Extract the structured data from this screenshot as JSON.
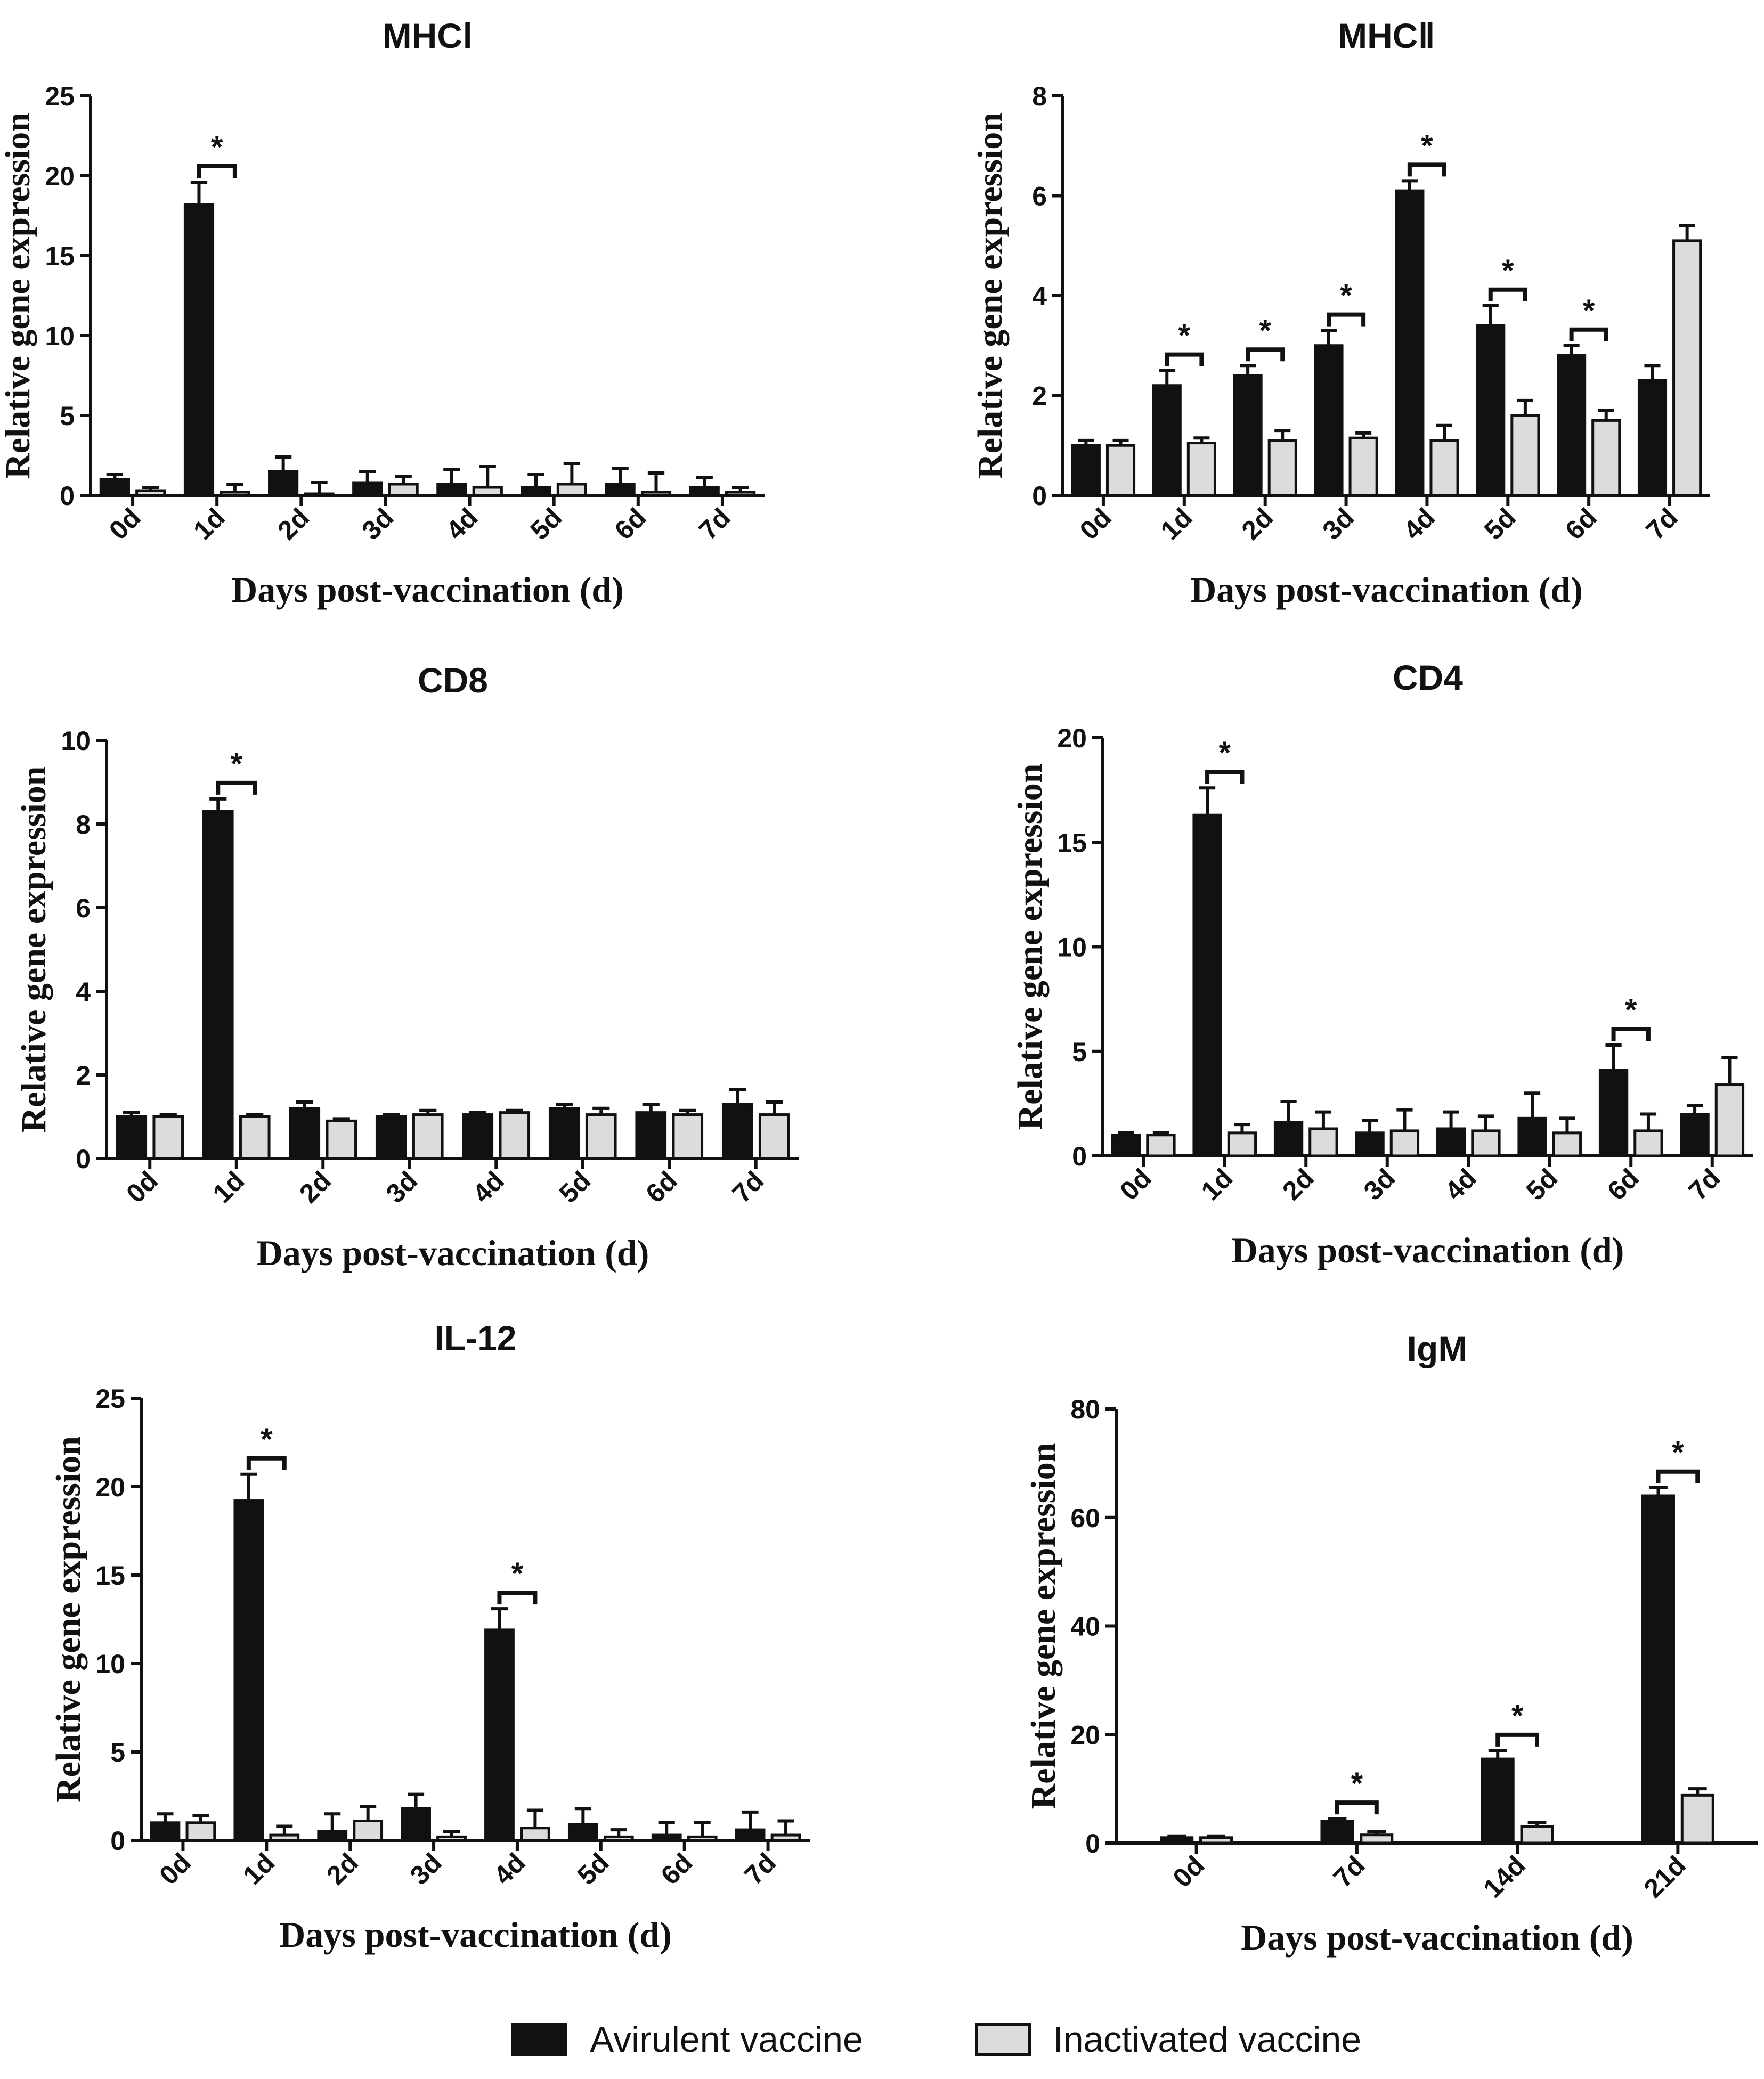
{
  "colors": {
    "avirulent": "#111111",
    "inactivated": "#dcdcdc",
    "axis": "#111111"
  },
  "legend": {
    "items": [
      {
        "label": "Avirulent vaccine",
        "color": "#111111"
      },
      {
        "label": "Inactivated vaccine",
        "color": "#dcdcdc"
      }
    ]
  },
  "chart_data": [
    {
      "type": "bar",
      "title": "MHCⅠ",
      "xlabel": "Days post-vaccination (d)",
      "ylabel": "Relative gene expression",
      "ylim": [
        0,
        25
      ],
      "yticks": [
        0,
        5,
        10,
        15,
        20,
        25
      ],
      "categories": [
        "0d",
        "1d",
        "2d",
        "3d",
        "4d",
        "5d",
        "6d",
        "7d"
      ],
      "series": [
        {
          "name": "Avirulent vaccine",
          "values": [
            1.0,
            18.2,
            1.5,
            0.8,
            0.7,
            0.5,
            0.7,
            0.5
          ],
          "errors": [
            0.3,
            1.4,
            0.9,
            0.7,
            0.9,
            0.8,
            1.0,
            0.6
          ]
        },
        {
          "name": "Inactivated vaccine",
          "values": [
            0.3,
            0.2,
            0.1,
            0.7,
            0.5,
            0.7,
            0.2,
            0.2
          ],
          "errors": [
            0.2,
            0.5,
            0.7,
            0.5,
            1.3,
            1.3,
            1.2,
            0.3
          ]
        }
      ],
      "significance": [
        "",
        "*",
        "",
        "",
        "",
        "",
        "",
        ""
      ]
    },
    {
      "type": "bar",
      "title": "MHCⅡ",
      "xlabel": "Days post-vaccination (d)",
      "ylabel": "Relative gene expression",
      "ylim": [
        0,
        8
      ],
      "yticks": [
        0,
        2,
        4,
        6,
        8
      ],
      "categories": [
        "0d",
        "1d",
        "2d",
        "3d",
        "4d",
        "5d",
        "6d",
        "7d"
      ],
      "series": [
        {
          "name": "Avirulent vaccine",
          "values": [
            1.0,
            2.2,
            2.4,
            3.0,
            6.1,
            3.4,
            2.8,
            2.3
          ],
          "errors": [
            0.1,
            0.3,
            0.2,
            0.3,
            0.2,
            0.4,
            0.2,
            0.3
          ]
        },
        {
          "name": "Inactivated vaccine",
          "values": [
            1.0,
            1.05,
            1.1,
            1.15,
            1.1,
            1.6,
            1.5,
            5.1
          ],
          "errors": [
            0.1,
            0.1,
            0.2,
            0.1,
            0.3,
            0.3,
            0.2,
            0.3
          ]
        }
      ],
      "significance": [
        "",
        "*",
        "*",
        "*",
        "*",
        "*",
        "*",
        ""
      ]
    },
    {
      "type": "bar",
      "title": "CD8",
      "xlabel": "Days post-vaccination (d)",
      "ylabel": "Relative gene expression",
      "ylim": [
        0,
        10
      ],
      "yticks": [
        0,
        2,
        4,
        6,
        8,
        10
      ],
      "categories": [
        "0d",
        "1d",
        "2d",
        "3d",
        "4d",
        "5d",
        "6d",
        "7d"
      ],
      "series": [
        {
          "name": "Avirulent vaccine",
          "values": [
            1.0,
            8.3,
            1.2,
            1.0,
            1.05,
            1.2,
            1.1,
            1.3
          ],
          "errors": [
            0.1,
            0.3,
            0.15,
            0.05,
            0.05,
            0.1,
            0.2,
            0.35
          ]
        },
        {
          "name": "Inactivated vaccine",
          "values": [
            1.0,
            1.0,
            0.9,
            1.05,
            1.1,
            1.05,
            1.05,
            1.05
          ],
          "errors": [
            0.05,
            0.05,
            0.05,
            0.1,
            0.05,
            0.15,
            0.1,
            0.3
          ]
        }
      ],
      "significance": [
        "",
        "*",
        "",
        "",
        "",
        "",
        "",
        ""
      ]
    },
    {
      "type": "bar",
      "title": "CD4",
      "xlabel": "Days post-vaccination (d)",
      "ylabel": "Relative gene expression",
      "ylim": [
        0,
        20
      ],
      "yticks": [
        0,
        5,
        10,
        15,
        20
      ],
      "categories": [
        "0d",
        "1d",
        "2d",
        "3d",
        "4d",
        "5d",
        "6d",
        "7d"
      ],
      "series": [
        {
          "name": "Avirulent vaccine",
          "values": [
            1.0,
            16.3,
            1.6,
            1.1,
            1.3,
            1.8,
            4.1,
            2.0
          ],
          "errors": [
            0.1,
            1.3,
            1.0,
            0.6,
            0.8,
            1.2,
            1.2,
            0.4
          ]
        },
        {
          "name": "Inactivated vaccine",
          "values": [
            1.0,
            1.1,
            1.3,
            1.2,
            1.2,
            1.1,
            1.2,
            3.4
          ],
          "errors": [
            0.1,
            0.4,
            0.8,
            1.0,
            0.7,
            0.7,
            0.8,
            1.3
          ]
        }
      ],
      "significance": [
        "",
        "*",
        "",
        "",
        "",
        "",
        "*",
        ""
      ]
    },
    {
      "type": "bar",
      "title": "IL-12",
      "xlabel": "Days post-vaccination (d)",
      "ylabel": "Relative gene expression",
      "ylim": [
        0,
        25
      ],
      "yticks": [
        0,
        5,
        10,
        15,
        20,
        25
      ],
      "categories": [
        "0d",
        "1d",
        "2d",
        "3d",
        "4d",
        "5d",
        "6d",
        "7d"
      ],
      "series": [
        {
          "name": "Avirulent vaccine",
          "values": [
            1.0,
            19.2,
            0.5,
            1.8,
            11.9,
            0.9,
            0.3,
            0.6
          ],
          "errors": [
            0.5,
            1.5,
            1.0,
            0.8,
            1.2,
            0.9,
            0.7,
            1.0
          ]
        },
        {
          "name": "Inactivated vaccine",
          "values": [
            1.0,
            0.3,
            1.1,
            0.2,
            0.7,
            0.2,
            0.2,
            0.3
          ],
          "errors": [
            0.4,
            0.5,
            0.8,
            0.3,
            1.0,
            0.4,
            0.8,
            0.8
          ]
        }
      ],
      "significance": [
        "",
        "*",
        "",
        "",
        "*",
        "",
        "",
        ""
      ]
    },
    {
      "type": "bar",
      "title": "IgM",
      "xlabel": "Days post-vaccination (d)",
      "ylabel": "Relative gene expression",
      "ylim": [
        0,
        80
      ],
      "yticks": [
        0,
        20,
        40,
        60,
        80
      ],
      "categories": [
        "0d",
        "7d",
        "14d",
        "21d"
      ],
      "series": [
        {
          "name": "Avirulent vaccine",
          "values": [
            1.0,
            4.0,
            15.5,
            64.0
          ],
          "errors": [
            0.3,
            0.5,
            1.5,
            1.5
          ]
        },
        {
          "name": "Inactivated vaccine",
          "values": [
            1.0,
            1.5,
            3.0,
            8.8
          ],
          "errors": [
            0.3,
            0.6,
            0.8,
            1.2
          ]
        }
      ],
      "significance": [
        "",
        "*",
        "*",
        "*"
      ]
    }
  ]
}
